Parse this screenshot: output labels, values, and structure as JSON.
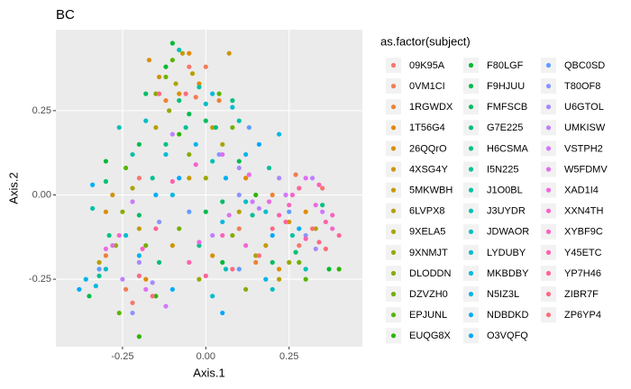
{
  "chart_data": {
    "type": "scatter",
    "title": "BC",
    "x_label": "Axis.1",
    "y_label": "Axis.2",
    "legend_title": "as.factor(subject)",
    "legend": "right",
    "grid": true,
    "xlim": [
      -0.45,
      0.47
    ],
    "ylim": [
      -0.45,
      0.49
    ],
    "xticks": [
      {
        "value": -0.25,
        "label": "-0.25"
      },
      {
        "value": 0,
        "label": "0.00"
      },
      {
        "value": 0.25,
        "label": "0.25"
      }
    ],
    "yticks": [
      {
        "value": -0.25,
        "label": "-0.25"
      },
      {
        "value": 0,
        "label": "0.00"
      },
      {
        "value": 0.25,
        "label": "0.25"
      }
    ],
    "series": [
      {
        "name": "09K95A",
        "color": "#F8766D",
        "x": [
          -0.05,
          -0.2,
          0.28,
          0.35,
          -0.22
        ],
        "values": [
          0.38,
          0.05,
          -0.15,
          0.02,
          -0.32
        ]
      },
      {
        "name": "0VM1CI",
        "color": "#F27D53",
        "x": [
          -0.03,
          0.0,
          0.27,
          -0.24,
          0.1
        ],
        "values": [
          0.29,
          0.38,
          0.06,
          -0.28,
          -0.1
        ]
      },
      {
        "name": "1RGWDX",
        "color": "#EB8335",
        "x": [
          -0.12,
          0.04,
          0.2,
          -0.3,
          0.15
        ],
        "values": [
          0.28,
          0.28,
          0.0,
          -0.18,
          -0.2
        ]
      },
      {
        "name": "1T56G4",
        "color": "#E38900",
        "x": [
          -0.05,
          -0.02,
          0.12,
          -0.18,
          0.3
        ],
        "values": [
          0.42,
          0.33,
          0.05,
          -0.25,
          -0.05
        ]
      },
      {
        "name": "26QQrO",
        "color": "#DA8F00",
        "x": [
          -0.17,
          -0.08,
          -0.3,
          0.02,
          0.22
        ],
        "values": [
          0.4,
          0.3,
          -0.05,
          -0.18,
          -0.22
        ]
      },
      {
        "name": "4XSG4Y",
        "color": "#CF9400",
        "x": [
          -0.14,
          0.07,
          -0.1,
          0.25,
          -0.28
        ],
        "values": [
          0.35,
          0.42,
          -0.15,
          -0.08,
          0.0
        ]
      },
      {
        "name": "5MKWBH",
        "color": "#C49A00",
        "x": [
          -0.07,
          0.02,
          -0.2,
          0.18,
          -0.05
        ],
        "values": [
          0.42,
          0.2,
          -0.1,
          -0.15,
          0.05
        ]
      },
      {
        "name": "6LVPX8",
        "color": "#B79F00",
        "x": [
          -0.04,
          -0.15,
          0.1,
          -0.32,
          0.22
        ],
        "values": [
          0.36,
          0.2,
          -0.05,
          -0.2,
          -0.25
        ]
      },
      {
        "name": "9XELA5",
        "color": "#A9A400",
        "x": [
          -0.09,
          0.05,
          -0.22,
          0.15,
          0.33
        ],
        "values": [
          0.33,
          0.15,
          0.02,
          -0.18,
          -0.1
        ]
      },
      {
        "name": "9XNMJT",
        "color": "#99A800",
        "x": [
          -0.11,
          0.0,
          -0.27,
          0.25,
          -0.02
        ],
        "values": [
          0.25,
          0.05,
          -0.15,
          -0.2,
          -0.25
        ]
      },
      {
        "name": "DLODDN",
        "color": "#87AC00",
        "x": [
          -0.15,
          -0.05,
          -0.25,
          0.08,
          0.12
        ],
        "values": [
          0.3,
          0.12,
          -0.05,
          -0.12,
          -0.28
        ]
      },
      {
        "name": "DZVZH0",
        "color": "#72B000",
        "x": [
          -0.12,
          0.08,
          -0.18,
          0.28,
          -0.08
        ],
        "values": [
          0.35,
          0.2,
          -0.15,
          -0.2,
          -0.1
        ]
      },
      {
        "name": "EPJUNL",
        "color": "#58B500",
        "x": [
          -0.1,
          0.04,
          -0.24,
          0.3,
          -0.26
        ],
        "values": [
          0.4,
          0.3,
          0.08,
          -0.25,
          -0.35
        ]
      },
      {
        "name": "EUQG8X",
        "color": "#2DB600",
        "x": [
          -0.2,
          -0.08,
          0.4,
          -0.15,
          0.15
        ],
        "values": [
          -0.42,
          0.18,
          -0.22,
          -0.3,
          0.0
        ]
      },
      {
        "name": "F80LGF",
        "color": "#00B935",
        "x": [
          -0.1,
          -0.12,
          0.05,
          -0.3,
          0.37
        ],
        "values": [
          0.45,
          0.38,
          -0.2,
          0.1,
          -0.22
        ]
      },
      {
        "name": "F9HJUU",
        "color": "#00BB4E",
        "x": [
          -0.05,
          -0.2,
          0.1,
          -0.35,
          0.0
        ],
        "values": [
          0.24,
          0.15,
          0.1,
          -0.3,
          -0.05
        ]
      },
      {
        "name": "FMFSCB",
        "color": "#00BD62",
        "x": [
          0.0,
          -0.18,
          -0.2,
          0.2,
          0.05
        ],
        "values": [
          0.22,
          0.3,
          -0.06,
          -0.2,
          -0.02
        ]
      },
      {
        "name": "G7E225",
        "color": "#00BF74",
        "x": [
          -0.08,
          0.03,
          -0.3,
          0.27,
          -0.14
        ],
        "values": [
          0.28,
          0.2,
          0.04,
          -0.17,
          -0.2
        ]
      },
      {
        "name": "H6CSMA",
        "color": "#00C085",
        "x": [
          -0.12,
          0.08,
          -0.29,
          0.35,
          -0.02
        ],
        "values": [
          0.15,
          0.28,
          -0.12,
          -0.03,
          -0.15
        ]
      },
      {
        "name": "I5N225",
        "color": "#00C096",
        "x": [
          -0.06,
          -0.16,
          0.14,
          -0.32,
          0.19
        ],
        "values": [
          0.2,
          0.05,
          -0.06,
          -0.24,
          0.08
        ]
      },
      {
        "name": "J1O0BL",
        "color": "#00C1A6",
        "x": [
          -0.02,
          0.1,
          -0.22,
          -0.34,
          0.26
        ],
        "values": [
          0.32,
          0.22,
          0.12,
          -0.04,
          -0.12
        ]
      },
      {
        "name": "J3UYDR",
        "color": "#00C0B5",
        "x": [
          -0.08,
          0.02,
          -0.26,
          0.06,
          0.3
        ],
        "values": [
          0.43,
          0.1,
          0.2,
          -0.22,
          -0.22
        ]
      },
      {
        "name": "JDWAOR",
        "color": "#00BEC4",
        "x": [
          0.0,
          -0.18,
          0.12,
          -0.3,
          0.2
        ],
        "values": [
          0.27,
          0.22,
          -0.02,
          -0.22,
          -0.28
        ]
      },
      {
        "name": "LYDUBY",
        "color": "#00BCD2",
        "x": [
          0.08,
          -0.12,
          0.18,
          -0.24,
          0.02
        ],
        "values": [
          0.26,
          0.12,
          -0.05,
          -0.12,
          -0.3
        ]
      },
      {
        "name": "MKBDBY",
        "color": "#00B9DF",
        "x": [
          0.02,
          -0.1,
          0.22,
          -0.33,
          0.05
        ],
        "values": [
          0.3,
          0.0,
          0.18,
          -0.27,
          -0.08
        ]
      },
      {
        "name": "N5IZ3L",
        "color": "#00B4EA",
        "x": [
          0.12,
          -0.03,
          0.18,
          -0.36,
          -0.2
        ],
        "values": [
          0.12,
          0.15,
          -0.25,
          -0.25,
          -0.18
        ]
      },
      {
        "name": "NDBDKD",
        "color": "#00AEF4",
        "x": [
          0.06,
          -0.15,
          0.28,
          -0.1,
          -0.34
        ],
        "values": [
          0.05,
          0.0,
          -0.1,
          -0.28,
          0.03
        ]
      },
      {
        "name": "O3VQFQ",
        "color": "#00A7FC",
        "x": [
          0.16,
          -0.08,
          0.2,
          -0.38,
          0.05
        ],
        "values": [
          0.15,
          0.05,
          -0.12,
          -0.28,
          -0.35
        ]
      },
      {
        "name": "QBC0SD",
        "color": "#619CFF",
        "x": [
          0.13,
          -0.05,
          0.25,
          -0.32,
          0.1
        ],
        "values": [
          0.2,
          -0.05,
          -0.05,
          -0.22,
          -0.22
        ]
      },
      {
        "name": "T80OF8",
        "color": "#8B93FF",
        "x": [
          0.04,
          -0.14,
          0.3,
          -0.22,
          0.1
        ],
        "values": [
          0.12,
          -0.08,
          -0.12,
          -0.35,
          0.0
        ]
      },
      {
        "name": "U6GTOL",
        "color": "#A78AFF",
        "x": [
          0.1,
          -0.2,
          0.22,
          -0.16,
          0.33
        ],
        "values": [
          0.08,
          -0.2,
          0.05,
          -0.26,
          -0.16
        ]
      },
      {
        "name": "UMKISW",
        "color": "#BE80FF",
        "x": [
          0.02,
          -0.25,
          0.32,
          -0.1,
          0.16
        ],
        "values": [
          -0.12,
          -0.25,
          0.05,
          0.18,
          -0.04
        ]
      },
      {
        "name": "VSTPH2",
        "color": "#D177FC",
        "x": [
          0.14,
          -0.12,
          0.35,
          -0.22,
          0.24
        ],
        "values": [
          -0.02,
          -0.33,
          -0.05,
          -0.02,
          0.0
        ]
      },
      {
        "name": "W5FDMV",
        "color": "#E06FF0",
        "x": [
          0.07,
          -0.28,
          0.3,
          0.05,
          -0.18
        ],
        "values": [
          -0.06,
          -0.15,
          0.05,
          0.12,
          -0.28
        ]
      },
      {
        "name": "XAD1I4",
        "color": "#EC69E2",
        "x": [
          0.19,
          -0.02,
          0.33,
          -0.3,
          0.13
        ],
        "values": [
          -0.02,
          -0.14,
          -0.03,
          -0.16,
          0.06
        ]
      },
      {
        "name": "XXN4TH",
        "color": "#F564D1",
        "x": [
          0.26,
          -0.03,
          0.38,
          -0.26,
          0.12
        ],
        "values": [
          0.0,
          0.09,
          -0.1,
          -0.12,
          -0.15
        ]
      },
      {
        "name": "XYBF9C",
        "color": "#FC61BF",
        "x": [
          0.25,
          0.05,
          0.34,
          -0.19,
          0.38
        ],
        "values": [
          -0.03,
          -0.12,
          0.03,
          -0.16,
          -0.06
        ]
      },
      {
        "name": "Y45ETC",
        "color": "#FF61AC",
        "x": [
          0.3,
          -0.05,
          0.36,
          -0.1,
          0.22
        ],
        "values": [
          -0.13,
          -0.2,
          -0.08,
          0.04,
          -0.06
        ]
      },
      {
        "name": "YP7H46",
        "color": "#FF6499",
        "x": [
          0.24,
          -0.15,
          0.4,
          0.0,
          0.28
        ],
        "values": [
          -0.08,
          -0.1,
          -0.12,
          -0.24,
          0.02
        ]
      },
      {
        "name": "ZIBR7F",
        "color": "#FD6985",
        "x": [
          0.2,
          -0.2,
          0.34,
          -0.14,
          0.08
        ],
        "values": [
          -0.1,
          -0.24,
          -0.14,
          0.3,
          -0.22
        ]
      },
      {
        "name": "ZP6YP4",
        "color": "#FB6E7B",
        "x": [
          0.32,
          -0.06,
          0.36,
          -0.16,
          0.16
        ],
        "values": [
          -0.1,
          0.3,
          -0.16,
          -0.3,
          -0.18
        ]
      }
    ]
  }
}
